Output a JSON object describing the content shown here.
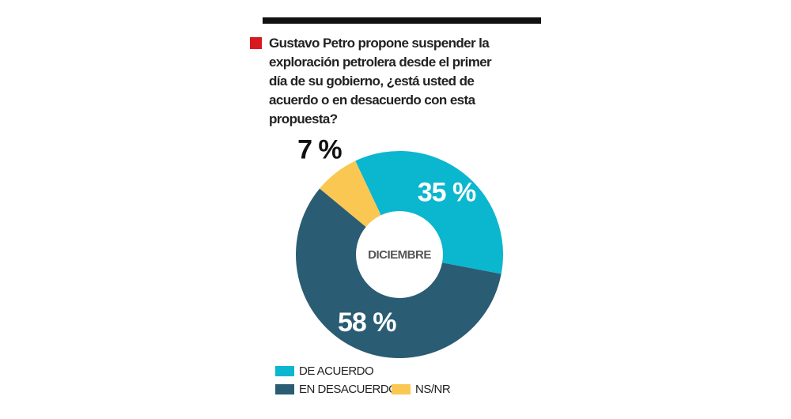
{
  "chart_data": {
    "type": "donut",
    "title": "Gustavo Petro propone suspender la exploración petrolera desde el primer día de su gobierno, ¿está usted de acuerdo o en desacuerdo con esta propuesta?",
    "center_label": "DICIEMBRE",
    "categories": [
      "DE ACUERDO",
      "EN DESACUERDO",
      "NS/NR"
    ],
    "values": [
      35,
      58,
      7
    ],
    "value_labels": [
      "35 %",
      "58 %",
      "7 %"
    ],
    "colors": [
      "#0bb6cf",
      "#2a5c73",
      "#fac752"
    ]
  }
}
